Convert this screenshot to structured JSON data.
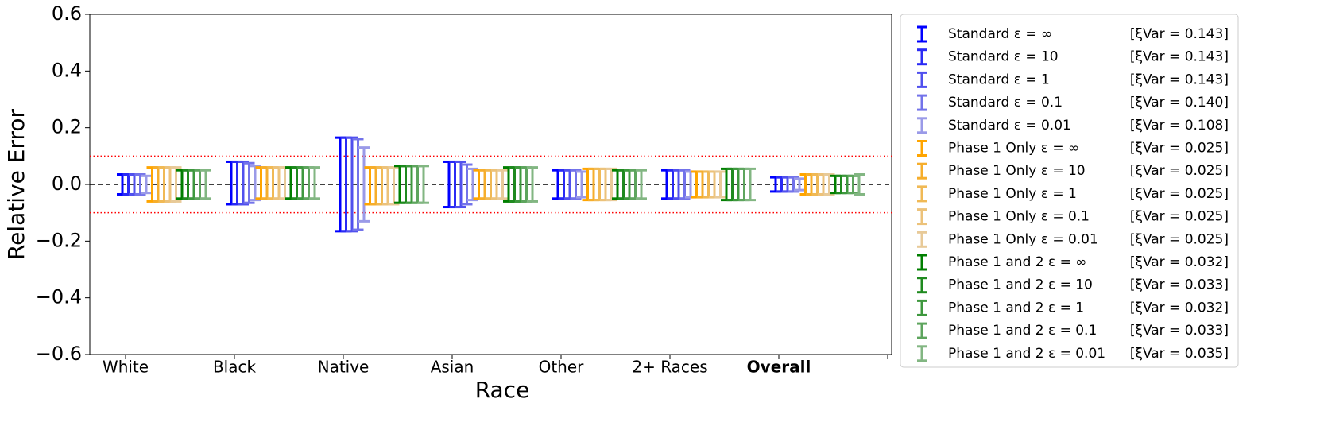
{
  "chart_data": {
    "type": "errorbar",
    "x_label": "Race",
    "y_label": "Relative Error",
    "categories": [
      "White",
      "Black",
      "Native",
      "Asian",
      "Other",
      "2+ Races",
      "Overall"
    ],
    "bold_category_index": 6,
    "ylim": [
      -0.6,
      0.6
    ],
    "yticks": [
      {
        "value": -0.6,
        "label": "−0.6"
      },
      {
        "value": -0.4,
        "label": "−0.4"
      },
      {
        "value": -0.2,
        "label": "−0.2"
      },
      {
        "value": 0,
        "label": "0.0"
      },
      0.2,
      0.4,
      0.6
    ],
    "reference_lines": [
      {
        "y": 0,
        "color": "#000000",
        "style": "dashed"
      },
      {
        "y": 0.1,
        "color": "#ff0000",
        "style": "dotted"
      },
      {
        "y": -0.1,
        "color": "#ff0000",
        "style": "dotted"
      }
    ],
    "legend": "outside-right",
    "series": [
      {
        "name": "Standard ε = ∞",
        "note": "[ξVar = 0.143]",
        "color": "#0000ff",
        "values": [
          0,
          0.005,
          0,
          0,
          0,
          0,
          0
        ],
        "errors": [
          0.035,
          0.075,
          0.165,
          0.08,
          0.05,
          0.05,
          0.025
        ]
      },
      {
        "name": "Standard ε = 10",
        "note": "[ξVar = 0.143]",
        "color": "#2a2af5",
        "values": [
          0,
          0.005,
          0,
          0,
          0,
          0,
          0
        ],
        "errors": [
          0.035,
          0.075,
          0.165,
          0.08,
          0.05,
          0.05,
          0.025
        ]
      },
      {
        "name": "Standard ε = 1",
        "note": "[ξVar = 0.143]",
        "color": "#5050ee",
        "values": [
          0,
          0.005,
          0,
          0,
          0,
          0,
          0
        ],
        "errors": [
          0.035,
          0.075,
          0.165,
          0.08,
          0.05,
          0.05,
          0.025
        ]
      },
      {
        "name": "Standard ε = 0.1",
        "note": "[ξVar = 0.140]",
        "color": "#7373ea",
        "values": [
          0,
          0.005,
          0,
          0,
          0,
          0,
          0
        ],
        "errors": [
          0.035,
          0.07,
          0.16,
          0.07,
          0.05,
          0.05,
          0.025
        ]
      },
      {
        "name": "Standard ε = 0.01",
        "note": "[ξVar = 0.108]",
        "color": "#9a9ae8",
        "values": [
          0,
          0.005,
          0,
          0,
          0,
          0,
          0
        ],
        "errors": [
          0.03,
          0.06,
          0.13,
          0.055,
          0.045,
          0.045,
          0.02
        ]
      },
      {
        "name": "Phase 1 Only ε = ∞",
        "note": "[ξVar = 0.025]",
        "color": "#ffa500",
        "values": [
          0,
          0.005,
          -0.005,
          0,
          0,
          0,
          0
        ],
        "errors": [
          0.06,
          0.055,
          0.065,
          0.05,
          0.055,
          0.045,
          0.035
        ]
      },
      {
        "name": "Phase 1 Only ε = 10",
        "note": "[ξVar = 0.025]",
        "color": "#f6ae2c",
        "values": [
          0,
          0.005,
          -0.005,
          0,
          0,
          0,
          0
        ],
        "errors": [
          0.06,
          0.055,
          0.065,
          0.05,
          0.055,
          0.045,
          0.035
        ]
      },
      {
        "name": "Phase 1 Only ε = 1",
        "note": "[ξVar = 0.025]",
        "color": "#f0b955",
        "values": [
          0,
          0.005,
          -0.005,
          0,
          0,
          0,
          0
        ],
        "errors": [
          0.06,
          0.055,
          0.065,
          0.05,
          0.055,
          0.045,
          0.035
        ]
      },
      {
        "name": "Phase 1 Only ε = 0.1",
        "note": "[ξVar = 0.025]",
        "color": "#ecc27a",
        "values": [
          0,
          0.005,
          -0.005,
          0,
          0,
          0,
          0
        ],
        "errors": [
          0.06,
          0.055,
          0.065,
          0.05,
          0.055,
          0.045,
          0.035
        ]
      },
      {
        "name": "Phase 1 Only ε = 0.01",
        "note": "[ξVar = 0.025]",
        "color": "#e8ca98",
        "values": [
          0,
          0.005,
          -0.005,
          0,
          0,
          0,
          0
        ],
        "errors": [
          0.06,
          0.055,
          0.065,
          0.05,
          0.055,
          0.045,
          0.035
        ]
      },
      {
        "name": "Phase 1 and 2 ε = ∞",
        "note": "[ξVar = 0.032]",
        "color": "#007f00",
        "values": [
          0,
          0.005,
          0,
          0,
          0,
          0,
          0
        ],
        "errors": [
          0.05,
          0.055,
          0.065,
          0.06,
          0.05,
          0.055,
          0.03
        ]
      },
      {
        "name": "Phase 1 and 2 ε = 10",
        "note": "[ξVar = 0.033]",
        "color": "#1f8a1f",
        "values": [
          0,
          0.005,
          0,
          0,
          0,
          0,
          0
        ],
        "errors": [
          0.05,
          0.055,
          0.065,
          0.06,
          0.05,
          0.055,
          0.03
        ]
      },
      {
        "name": "Phase 1 and 2 ε = 1",
        "note": "[ξVar = 0.032]",
        "color": "#3e983e",
        "values": [
          0,
          0.005,
          0,
          0,
          0,
          0,
          0
        ],
        "errors": [
          0.05,
          0.055,
          0.065,
          0.06,
          0.05,
          0.055,
          0.03
        ]
      },
      {
        "name": "Phase 1 and 2 ε = 0.1",
        "note": "[ξVar = 0.033]",
        "color": "#5ea55e",
        "values": [
          0,
          0.005,
          0,
          0,
          0,
          0,
          0
        ],
        "errors": [
          0.05,
          0.055,
          0.065,
          0.06,
          0.05,
          0.055,
          0.03
        ]
      },
      {
        "name": "Phase 1 and 2 ε = 0.01",
        "note": "[ξVar = 0.035]",
        "color": "#82b682",
        "values": [
          0,
          0.005,
          0,
          0,
          0,
          0,
          0
        ],
        "errors": [
          0.05,
          0.055,
          0.065,
          0.06,
          0.05,
          0.055,
          0.035
        ]
      }
    ]
  }
}
